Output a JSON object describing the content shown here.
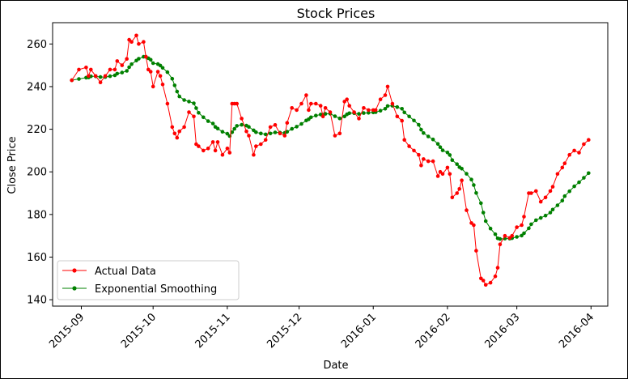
{
  "chart_data": {
    "type": "line",
    "title": "Stock Prices",
    "xlabel": "Date",
    "ylabel": "Close Price",
    "x_tick_labels": [
      "2015-09",
      "2015-10",
      "2015-11",
      "2015-12",
      "2016-01",
      "2016-02",
      "2016-03",
      "2016-04"
    ],
    "y_ticks": [
      140,
      160,
      180,
      200,
      220,
      240,
      260
    ],
    "ylim": [
      137,
      270
    ],
    "grid": false,
    "legend_position": "lower left",
    "x": [
      "2015-08-28",
      "2015-08-31",
      "2015-09-03",
      "2015-09-04",
      "2015-09-05",
      "2015-09-07",
      "2015-09-09",
      "2015-09-11",
      "2015-09-13",
      "2015-09-15",
      "2015-09-16",
      "2015-09-18",
      "2015-09-20",
      "2015-09-21",
      "2015-09-22",
      "2015-09-24",
      "2015-09-25",
      "2015-09-27",
      "2015-09-28",
      "2015-09-29",
      "2015-09-30",
      "2015-10-01",
      "2015-10-03",
      "2015-10-04",
      "2015-10-05",
      "2015-10-07",
      "2015-10-09",
      "2015-10-10",
      "2015-10-11",
      "2015-10-12",
      "2015-10-14",
      "2015-10-16",
      "2015-10-18",
      "2015-10-19",
      "2015-10-20",
      "2015-10-22",
      "2015-10-24",
      "2015-10-26",
      "2015-10-27",
      "2015-10-28",
      "2015-10-30",
      "2015-11-01",
      "2015-11-02",
      "2015-11-03",
      "2015-11-04",
      "2015-11-05",
      "2015-11-07",
      "2015-11-09",
      "2015-11-10",
      "2015-11-12",
      "2015-11-13",
      "2015-11-15",
      "2015-11-17",
      "2015-11-19",
      "2015-11-21",
      "2015-11-23",
      "2015-11-25",
      "2015-11-26",
      "2015-11-28",
      "2015-11-30",
      "2015-12-02",
      "2015-12-04",
      "2015-12-05",
      "2015-12-06",
      "2015-12-08",
      "2015-12-10",
      "2015-12-11",
      "2015-12-12",
      "2015-12-14",
      "2015-12-16",
      "2015-12-18",
      "2015-12-20",
      "2015-12-21",
      "2015-12-22",
      "2015-12-24",
      "2015-12-26",
      "2015-12-28",
      "2015-12-30",
      "2016-01-01",
      "2016-01-02",
      "2016-01-04",
      "2016-01-06",
      "2016-01-07",
      "2016-01-09",
      "2016-01-11",
      "2016-01-13",
      "2016-01-14",
      "2016-01-16",
      "2016-01-18",
      "2016-01-20",
      "2016-01-21",
      "2016-01-22",
      "2016-01-24",
      "2016-01-26",
      "2016-01-28",
      "2016-01-29",
      "2016-01-30",
      "2016-02-01",
      "2016-02-02",
      "2016-02-03",
      "2016-02-05",
      "2016-02-06",
      "2016-02-07",
      "2016-02-09",
      "2016-02-11",
      "2016-02-12",
      "2016-02-13",
      "2016-02-15",
      "2016-02-16",
      "2016-02-17",
      "2016-02-19",
      "2016-02-21",
      "2016-02-22",
      "2016-02-23",
      "2016-02-25",
      "2016-02-27",
      "2016-02-28",
      "2016-03-01",
      "2016-03-03",
      "2016-03-04",
      "2016-03-06",
      "2016-03-07",
      "2016-03-09",
      "2016-03-11",
      "2016-03-13",
      "2016-03-15",
      "2016-03-16",
      "2016-03-18",
      "2016-03-20",
      "2016-03-21",
      "2016-03-23",
      "2016-03-25",
      "2016-03-27",
      "2016-03-29",
      "2016-03-31"
    ],
    "series": [
      {
        "name": "Actual Data",
        "color": "#ff0000",
        "values": [
          243,
          248,
          249,
          245,
          248,
          245,
          242,
          245,
          248,
          248,
          252,
          250,
          253,
          262,
          261,
          264,
          260,
          261,
          254,
          248,
          247,
          240,
          247,
          245,
          241,
          232,
          221,
          218,
          216,
          219,
          221,
          228,
          226,
          213,
          212,
          210,
          211,
          214,
          210,
          214,
          208,
          211,
          209,
          232,
          232,
          232,
          225,
          219,
          217,
          208,
          212,
          213,
          215,
          221,
          222,
          218,
          217,
          223,
          230,
          229,
          232,
          236,
          229,
          232,
          232,
          231,
          226,
          230,
          228,
          217,
          218,
          233,
          234,
          231,
          228,
          225,
          230,
          229,
          229,
          229,
          234,
          236,
          240,
          232,
          226,
          224,
          215,
          212,
          210,
          208,
          203,
          206,
          205,
          205,
          198,
          200,
          199,
          202,
          199,
          188,
          190,
          192,
          196,
          182,
          176,
          175,
          163,
          150,
          149,
          147,
          148,
          151,
          155,
          166,
          170,
          169,
          170,
          174,
          175,
          179,
          190,
          190,
          191,
          186,
          188,
          191,
          193,
          199,
          202,
          204,
          208,
          210,
          209,
          213,
          215
        ],
        "values_note": ""
      }
    ]
  },
  "legend": {
    "items": [
      {
        "label": "Actual Data",
        "color": "#ff0000"
      },
      {
        "label": "Exponential Smoothing",
        "color": "#008000"
      }
    ]
  }
}
